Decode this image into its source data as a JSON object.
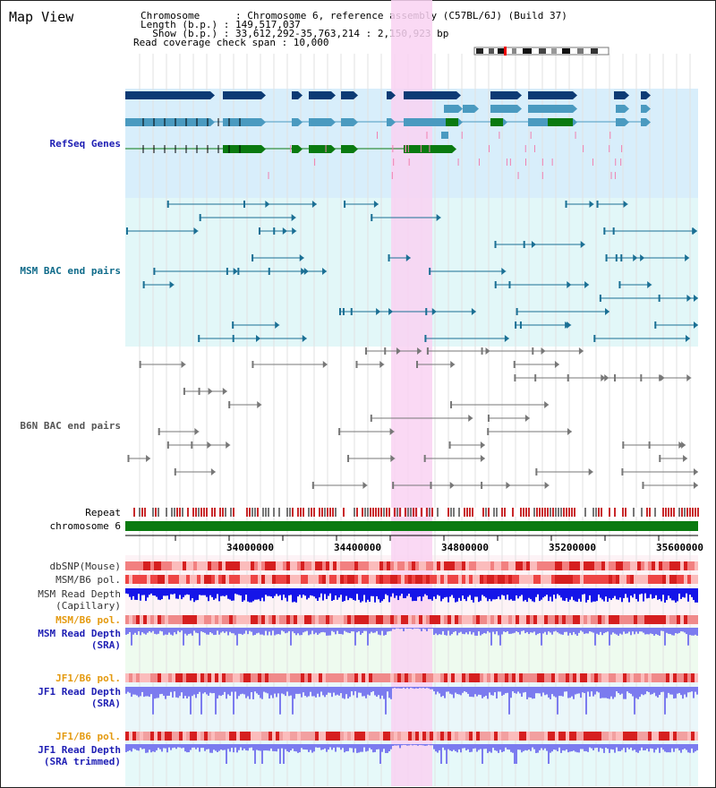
{
  "header": {
    "view_title": "Map View",
    "line1": "Chromosome      : Chromosome 6, reference assembly (C57BL/6J) (Build 37)",
    "line2": "Length (b.p.) : 149,517,037",
    "line3": "  Show (b.p.) : 33,612,292-35,763,214 : 2,150,923 bp",
    "line4": "Read coverage check span : 10,000"
  },
  "tracks": {
    "refseq": "RefSeq Genes",
    "msm_bac": "MSM BAC end pairs",
    "b6n_bac": "B6N BAC end pairs",
    "repeat": "Repeat",
    "chromosome": "chromosome 6",
    "dbsnp": "dbSNP(Mouse)",
    "msm_b6_pol": "MSM/B6 pol.",
    "msm_read_depth_cap": "MSM Read Depth\n(Capillary)",
    "msm_b6_pol2": "MSM/B6 pol.",
    "msm_read_depth_sra": "MSM Read Depth\n(SRA)",
    "jf1_b6_pol": "JF1/B6 pol.",
    "jf1_read_depth_sra": "JF1 Read Depth\n(SRA)",
    "jf1_b6_pol2": "JF1/B6 pol.",
    "jf1_read_depth_trim": "JF1 Read Depth\n(SRA trimmed)"
  },
  "axis": {
    "ticks": [
      "34000000",
      "34400000",
      "34800000",
      "35200000",
      "35600000"
    ]
  },
  "colors": {
    "highlight": "#f9d2f2",
    "refseq_bg": "#d8eefb",
    "msm_bg": "#e2f7f8",
    "gene_dark": "#0c3a74",
    "gene_mid": "#4a9ac0",
    "gene_green": "#0a7a10",
    "msm_line": "#1a6f94",
    "b6n_line": "#777777",
    "depth_blue": "#1515e8",
    "depth_light": "#7b7bef",
    "pol_red": "#ee3333",
    "label_blue": "#1e1eb4",
    "label_teal": "#0f6b8a",
    "label_orange": "#e49a10"
  }
}
